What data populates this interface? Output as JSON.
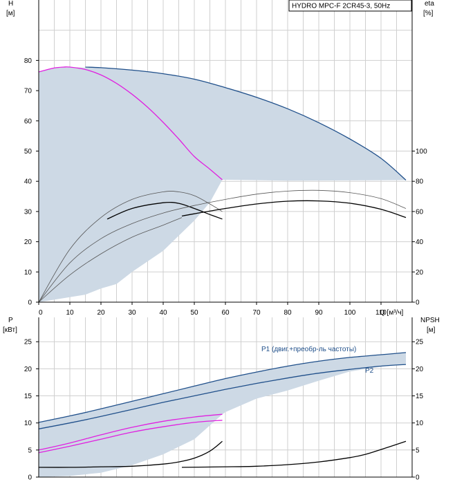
{
  "title": "HYDRO MPC-F 2CR45-3, 50Hz",
  "colors": {
    "grid": "#cfcfcf",
    "band": "#cdd9e5",
    "curve_blue": "#1f4f8a",
    "curve_magenta": "#e020e0",
    "curve_black": "#000000",
    "curve_grey": "#555555",
    "label_blue": "#1f4f8a"
  },
  "chart_data": [
    {
      "type": "line",
      "axes": {
        "x": {
          "label": "Q [м³/ч]",
          "ticks": [
            "0",
            "10",
            "20",
            "30",
            "40",
            "50",
            "60",
            "70",
            "80",
            "90",
            "100",
            "110"
          ],
          "range": [
            0,
            120
          ]
        },
        "y_left": {
          "label_top": "H",
          "label_unit": "[м]",
          "ticks": [
            "0",
            "10",
            "20",
            "30",
            "40",
            "50",
            "60",
            "70",
            "80"
          ],
          "range": [
            0,
            100
          ]
        },
        "y_right": {
          "label_top": "eta",
          "label_unit": "[%]",
          "ticks": [
            "0",
            "20",
            "40",
            "60",
            "80",
            "100"
          ],
          "range": [
            0,
            200
          ]
        }
      },
      "grid": true,
      "series": [
        {
          "id": "head_envelope",
          "axis": "left",
          "color": "#1f4f8a",
          "x": [
            15,
            20,
            30,
            40,
            50,
            60,
            70,
            80,
            90,
            100,
            110,
            118
          ],
          "y": [
            77.8,
            77.6,
            76.8,
            75.6,
            73.8,
            71.0,
            67.8,
            64.0,
            59.4,
            54.0,
            47.6,
            40.4
          ]
        },
        {
          "id": "head_single",
          "axis": "left",
          "color": "#e020e0",
          "x": [
            0,
            5,
            8,
            10,
            15,
            20,
            25,
            30,
            35,
            40,
            45,
            50,
            55,
            59
          ],
          "y": [
            76.2,
            77.5,
            77.8,
            77.8,
            77.0,
            75.2,
            72.4,
            68.8,
            64.5,
            59.5,
            54.0,
            48.2,
            44.0,
            40.5
          ]
        },
        {
          "id": "eta_single_grey",
          "axis": "right",
          "color": "#555555",
          "x": [
            0,
            10,
            20,
            30,
            40,
            45,
            50,
            55,
            59
          ],
          "y": [
            0,
            35,
            56,
            68,
            73,
            73,
            70.5,
            65,
            60
          ]
        },
        {
          "id": "eta_single_black",
          "axis": "right",
          "color": "#000000",
          "x": [
            22,
            30,
            40,
            45,
            50,
            55,
            59
          ],
          "y": [
            55,
            62,
            65.8,
            65.4,
            62,
            58,
            55
          ]
        },
        {
          "id": "eta_total_grey",
          "axis": "right",
          "color": "#555555",
          "x": [
            0,
            10,
            20,
            30,
            40,
            50,
            60,
            70,
            80,
            90,
            100,
            110,
            118
          ],
          "y": [
            0,
            26,
            42,
            52,
            59,
            64,
            68,
            71.5,
            73.5,
            74,
            72.5,
            68.5,
            62
          ]
        },
        {
          "id": "eta_total_black",
          "axis": "right",
          "color": "#000000",
          "x": [
            46,
            50,
            60,
            70,
            80,
            90,
            100,
            110,
            118
          ],
          "y": [
            57,
            58.5,
            62,
            65,
            66.8,
            67,
            65.5,
            61.5,
            56
          ]
        },
        {
          "id": "eta_total_grey_lower",
          "axis": "right",
          "color": "#555555",
          "x": [
            0,
            10,
            20,
            30,
            40,
            46
          ],
          "y": [
            0,
            18,
            32,
            43,
            51,
            56
          ]
        }
      ],
      "bands": [
        {
          "id": "head_area",
          "axis": "left",
          "upper_x": [
            0,
            5,
            10,
            15,
            20,
            30,
            40,
            50,
            60,
            70,
            80,
            90,
            100,
            110,
            118
          ],
          "upper_y": [
            76.2,
            77.5,
            77.8,
            77.6,
            77.6,
            76.8,
            75.6,
            73.8,
            71.0,
            67.8,
            64.0,
            59.4,
            54.0,
            47.6,
            40.4
          ],
          "lower_x": [
            118,
            100,
            80,
            60,
            59,
            55,
            50,
            45,
            40,
            30,
            25,
            20,
            15,
            0
          ],
          "lower_y": [
            40.4,
            40.3,
            40.2,
            40.5,
            40.5,
            33.0,
            27.0,
            22.0,
            17.0,
            10.0,
            6.0,
            4.5,
            2.5,
            0
          ]
        }
      ]
    },
    {
      "type": "line",
      "axes": {
        "x": {
          "range": [
            0,
            120
          ]
        },
        "y_left": {
          "label_top": "P",
          "label_unit": "[кВт]",
          "ticks": [
            "0",
            "5",
            "10",
            "15",
            "20",
            "25"
          ],
          "range": [
            0,
            29.5
          ]
        },
        "y_right": {
          "label_top": "NPSH",
          "label_unit": "[м]",
          "ticks": [
            "0",
            "5",
            "10",
            "15",
            "20",
            "25"
          ],
          "range": [
            0,
            29.5
          ]
        }
      },
      "grid": true,
      "annotations": [
        {
          "text": "P1 (двиг.+преобр-ль частоты)",
          "x": 77,
          "y": 23.8
        },
        {
          "text": "P2",
          "x": 113,
          "y": 20.0
        }
      ],
      "series": [
        {
          "id": "p1_total",
          "color": "#1f4f8a",
          "x": [
            0,
            10,
            20,
            30,
            40,
            50,
            60,
            70,
            80,
            90,
            100,
            110,
            118
          ],
          "y": [
            10.1,
            11.3,
            12.6,
            14.0,
            15.4,
            16.8,
            18.2,
            19.4,
            20.5,
            21.4,
            22.1,
            22.6,
            23.0
          ]
        },
        {
          "id": "p2_total",
          "color": "#1f4f8a",
          "x": [
            0,
            10,
            20,
            30,
            40,
            50,
            60,
            70,
            80,
            90,
            100,
            110,
            118
          ],
          "y": [
            8.9,
            10.0,
            11.2,
            12.5,
            13.8,
            15.0,
            16.2,
            17.3,
            18.3,
            19.2,
            19.9,
            20.5,
            20.8
          ]
        },
        {
          "id": "p1_single",
          "color": "#e020e0",
          "x": [
            0,
            10,
            20,
            30,
            40,
            50,
            59
          ],
          "y": [
            5.0,
            6.3,
            7.8,
            9.2,
            10.3,
            11.1,
            11.6
          ]
        },
        {
          "id": "p2_single",
          "color": "#e020e0",
          "x": [
            0,
            10,
            20,
            30,
            40,
            50,
            59
          ],
          "y": [
            4.5,
            5.7,
            7.0,
            8.3,
            9.3,
            10.1,
            10.5
          ]
        },
        {
          "id": "npsh_single",
          "color": "#000000",
          "x": [
            0,
            10,
            20,
            30,
            40,
            45,
            50,
            55,
            59
          ],
          "y": [
            1.8,
            1.8,
            1.9,
            2.0,
            2.4,
            2.8,
            3.5,
            4.8,
            6.6
          ]
        },
        {
          "id": "npsh_total",
          "color": "#000000",
          "x": [
            46,
            60,
            70,
            80,
            90,
            100,
            105,
            110,
            118
          ],
          "y": [
            1.8,
            1.9,
            2.0,
            2.3,
            2.8,
            3.6,
            4.2,
            5.1,
            6.6
          ]
        }
      ],
      "bands": [
        {
          "id": "power_area",
          "upper_x": [
            0,
            10,
            20,
            30,
            40,
            50,
            60,
            70,
            80,
            90,
            100,
            110,
            118
          ],
          "upper_y": [
            10.1,
            11.3,
            12.6,
            14.0,
            15.4,
            16.8,
            18.2,
            19.4,
            20.5,
            21.4,
            22.1,
            22.6,
            23.0
          ],
          "lower_x": [
            118,
            110,
            100,
            90,
            80,
            70,
            60,
            59,
            50,
            40,
            30,
            20,
            10,
            0
          ],
          "lower_y": [
            20.8,
            20.4,
            19.5,
            17.8,
            16.0,
            14.5,
            12.0,
            11.6,
            7.0,
            4.2,
            2.2,
            0.8,
            0.2,
            0.0
          ]
        }
      ]
    }
  ]
}
